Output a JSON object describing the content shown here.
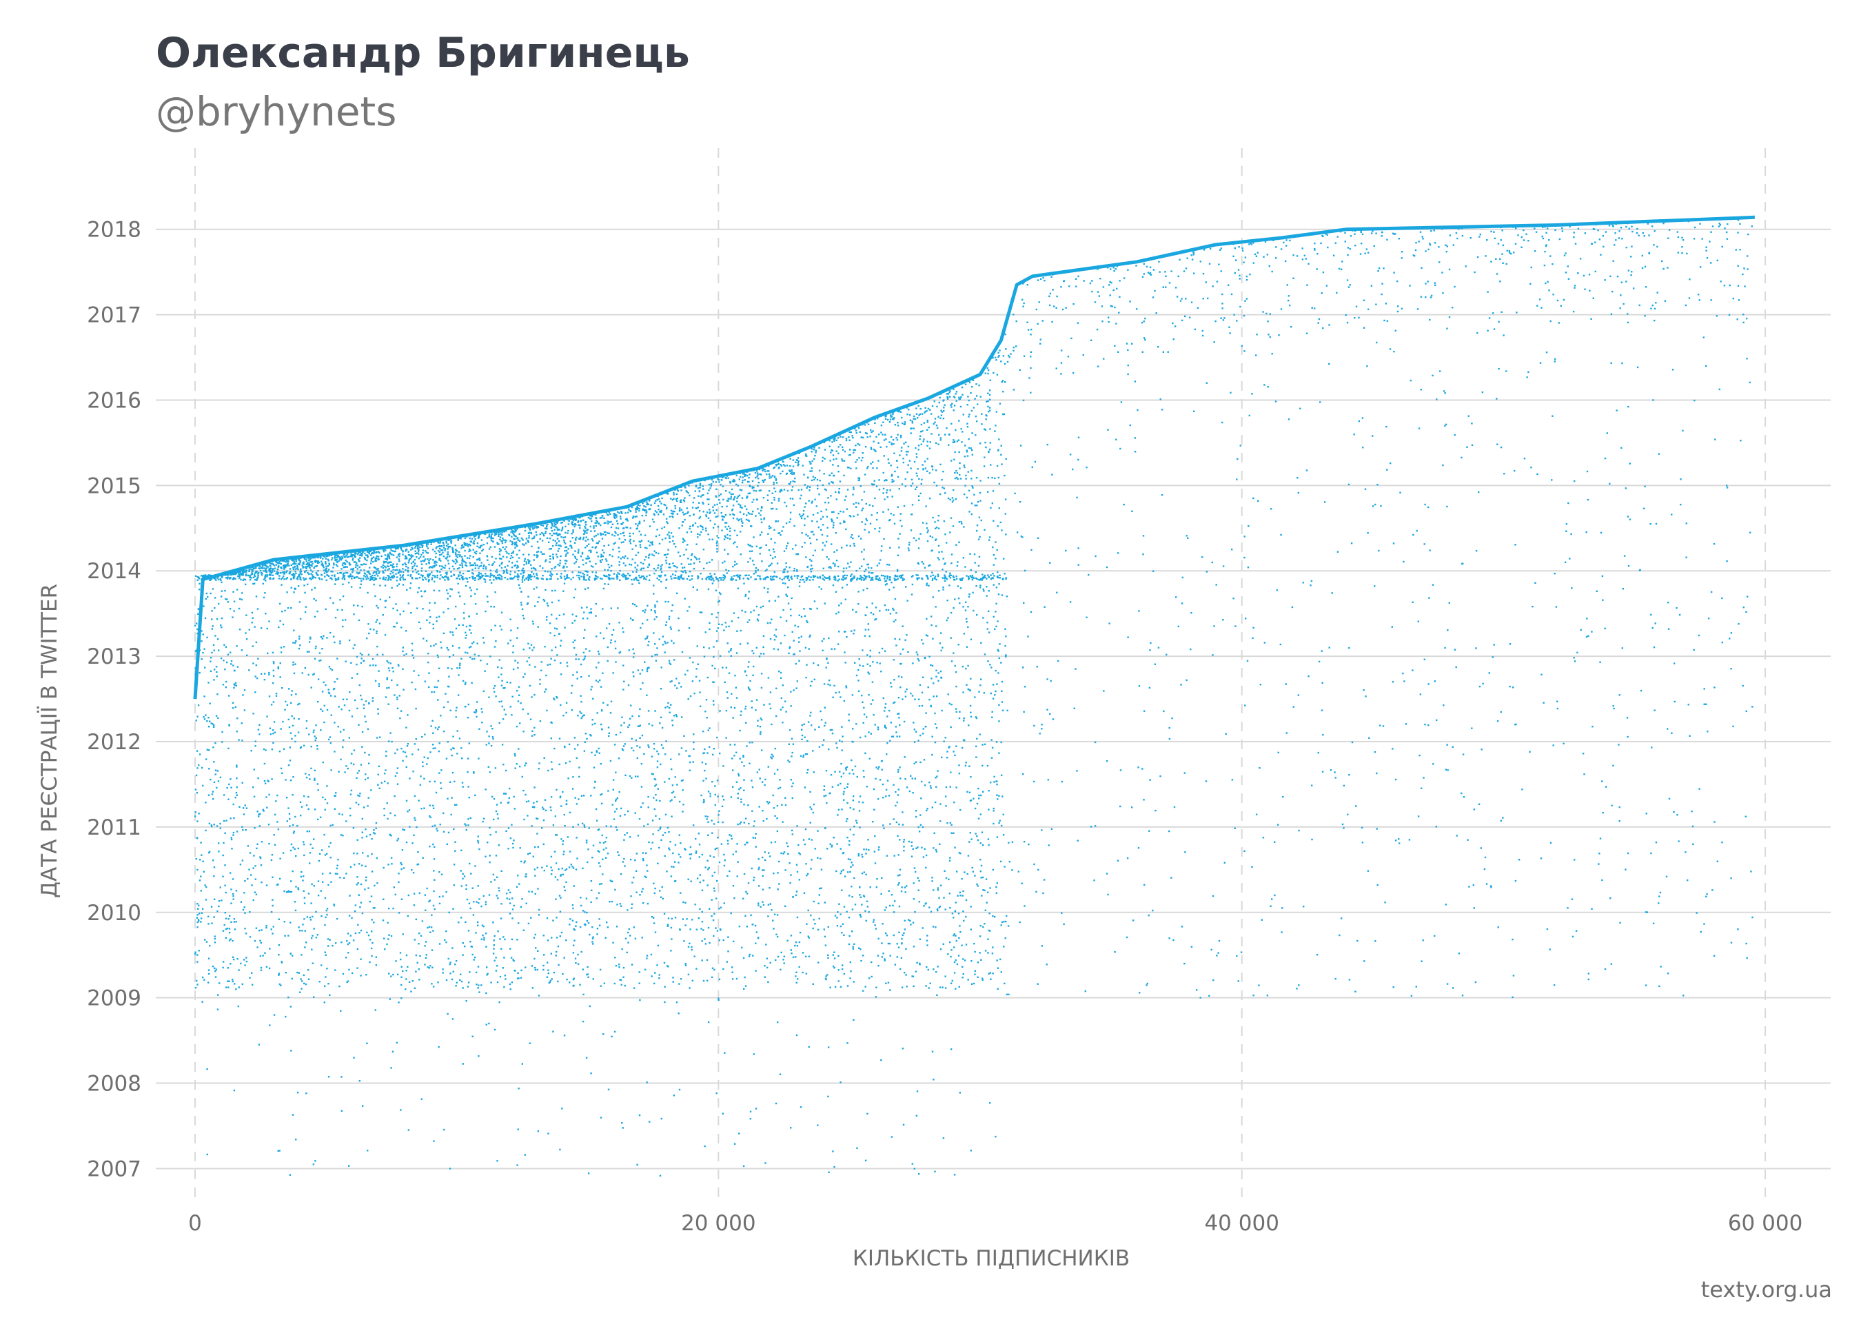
{
  "title": "Олександр Бригинець",
  "subtitle": "@bryhynets",
  "source": "texty.org.ua",
  "colors": {
    "points": "#1aa7e0",
    "grid": "#d9d9d9",
    "text": "#6f6f6f",
    "title": "#3b3f4a"
  },
  "chart_data": {
    "type": "scatter",
    "xlabel": "КІЛЬКІСТЬ ПІДПИСНИКІВ",
    "ylabel": "ДАТА РЕЄСТРАЦІЇ В TWITTER",
    "xlim": [
      -1500,
      62500
    ],
    "ylim": [
      2006.6,
      2018.95
    ],
    "x_ticks": [
      {
        "value": 0,
        "label": "0"
      },
      {
        "value": 20000,
        "label": "20 000"
      },
      {
        "value": 40000,
        "label": "40 000"
      },
      {
        "value": 60000,
        "label": "60 000"
      }
    ],
    "y_ticks": [
      {
        "value": 2007,
        "label": "2007"
      },
      {
        "value": 2008,
        "label": "2008"
      },
      {
        "value": 2009,
        "label": "2009"
      },
      {
        "value": 2010,
        "label": "2010"
      },
      {
        "value": 2011,
        "label": "2011"
      },
      {
        "value": 2012,
        "label": "2012"
      },
      {
        "value": 2013,
        "label": "2013"
      },
      {
        "value": 2014,
        "label": "2014"
      },
      {
        "value": 2015,
        "label": "2015"
      },
      {
        "value": 2016,
        "label": "2016"
      },
      {
        "value": 2017,
        "label": "2017"
      },
      {
        "value": 2018,
        "label": "2018"
      }
    ],
    "grid": {
      "horizontal": "solid",
      "vertical": "dashed"
    },
    "legend": "none",
    "n_followers_approx": 59600,
    "frontier": [
      {
        "x": 0,
        "y": 2012.5
      },
      {
        "x": 300,
        "y": 2013.9
      },
      {
        "x": 3000,
        "y": 2014.13
      },
      {
        "x": 8000,
        "y": 2014.3
      },
      {
        "x": 13000,
        "y": 2014.55
      },
      {
        "x": 16500,
        "y": 2014.75
      },
      {
        "x": 19000,
        "y": 2015.05
      },
      {
        "x": 21500,
        "y": 2015.2
      },
      {
        "x": 23500,
        "y": 2015.45
      },
      {
        "x": 26000,
        "y": 2015.8
      },
      {
        "x": 28000,
        "y": 2016.02
      },
      {
        "x": 30000,
        "y": 2016.3
      },
      {
        "x": 30800,
        "y": 2016.7
      },
      {
        "x": 31400,
        "y": 2017.35
      },
      {
        "x": 32000,
        "y": 2017.45
      },
      {
        "x": 36000,
        "y": 2017.62
      },
      {
        "x": 39000,
        "y": 2017.82
      },
      {
        "x": 41500,
        "y": 2017.9
      },
      {
        "x": 44000,
        "y": 2018.0
      },
      {
        "x": 52000,
        "y": 2018.05
      },
      {
        "x": 59600,
        "y": 2018.14
      }
    ],
    "density_notes": {
      "dense_region_x": [
        0,
        31000
      ],
      "dense_region_y_min": 2009.1,
      "sparse_region_x": [
        31000,
        59600
      ],
      "horizontal_band_y": 2013.92
    }
  }
}
